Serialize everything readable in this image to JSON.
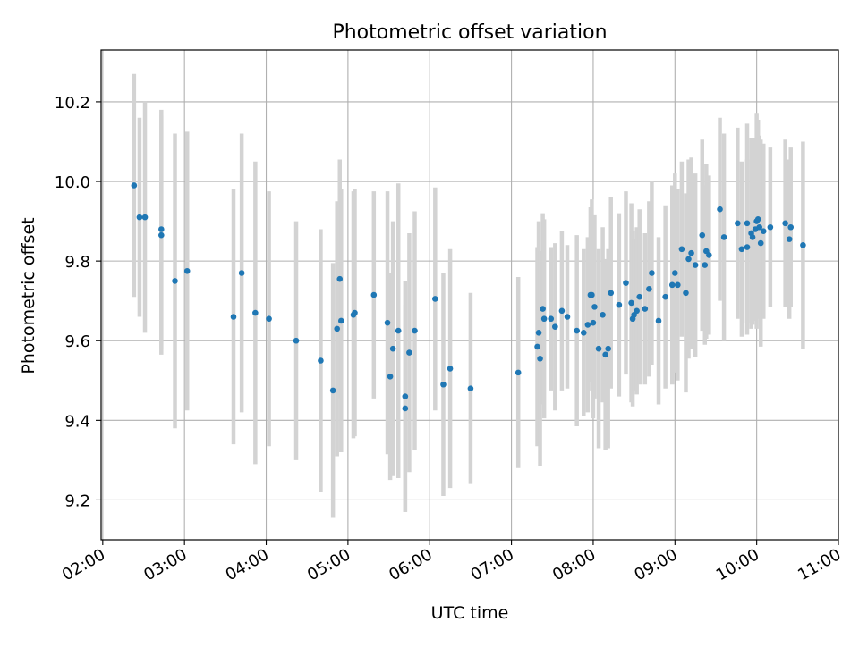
{
  "chart_data": {
    "type": "scatter",
    "title": "Photometric offset variation",
    "xlabel": "UTC time",
    "ylabel": "Photometric offset",
    "x_unit": "hours UTC",
    "xlim": [
      1.98,
      11.0
    ],
    "ylim": [
      9.1,
      10.33
    ],
    "xticks": [
      "02:00",
      "03:00",
      "04:00",
      "05:00",
      "06:00",
      "07:00",
      "08:00",
      "09:00",
      "10:00",
      "11:00"
    ],
    "yticks": [
      "9.2",
      "9.4",
      "9.6",
      "9.8",
      "10.0",
      "10.2"
    ],
    "grid": true,
    "marker_color": "#1f77b4",
    "errorbar_color": "#d3d3d3",
    "series": [
      {
        "x": [
          "02:23",
          "02:27",
          "02:31",
          "02:43",
          "02:43",
          "02:53",
          "03:02",
          "03:36",
          "03:42",
          "03:52",
          "04:02",
          "04:22",
          "04:40",
          "04:49",
          "04:52",
          "04:54",
          "04:55",
          "05:04",
          "05:05",
          "05:19",
          "05:29",
          "05:31",
          "05:33",
          "05:37",
          "05:42",
          "05:42",
          "05:45",
          "05:49",
          "06:04",
          "06:10",
          "06:15",
          "06:30",
          "07:05",
          "07:19",
          "07:20",
          "07:21",
          "07:23",
          "07:24",
          "07:29",
          "07:32",
          "07:37",
          "07:41",
          "07:48",
          "07:53",
          "07:56",
          "07:58",
          "07:59",
          "08:00",
          "08:01",
          "08:04",
          "08:07",
          "08:09",
          "08:11",
          "08:13",
          "08:19",
          "08:24",
          "08:28",
          "08:29",
          "08:30",
          "08:32",
          "08:34",
          "08:38",
          "08:41",
          "08:43",
          "08:48",
          "08:53",
          "08:58",
          "09:00",
          "09:02",
          "09:05",
          "09:08",
          "09:10",
          "09:12",
          "09:15",
          "09:20",
          "09:22",
          "09:23",
          "09:25",
          "09:33",
          "09:36",
          "09:46",
          "09:49",
          "09:53",
          "09:53",
          "09:56",
          "09:57",
          "09:59",
          "10:00",
          "10:01",
          "10:02",
          "10:03",
          "10:05",
          "10:10",
          "10:21",
          "10:24",
          "10:25",
          "10:34"
        ],
        "y": [
          9.99,
          9.91,
          9.91,
          9.88,
          9.865,
          9.75,
          9.775,
          9.66,
          9.77,
          9.67,
          9.655,
          9.6,
          9.55,
          9.475,
          9.63,
          9.755,
          9.65,
          9.665,
          9.67,
          9.715,
          9.645,
          9.51,
          9.58,
          9.625,
          9.46,
          9.43,
          9.57,
          9.625,
          9.705,
          9.49,
          9.53,
          9.48,
          9.52,
          9.585,
          9.62,
          9.555,
          9.68,
          9.655,
          9.655,
          9.635,
          9.675,
          9.66,
          9.625,
          9.62,
          9.64,
          9.715,
          9.715,
          9.645,
          9.685,
          9.58,
          9.665,
          9.565,
          9.58,
          9.72,
          9.69,
          9.745,
          9.695,
          9.655,
          9.665,
          9.675,
          9.71,
          9.68,
          9.73,
          9.77,
          9.65,
          9.71,
          9.74,
          9.77,
          9.74,
          9.83,
          9.72,
          9.805,
          9.82,
          9.79,
          9.865,
          9.79,
          9.825,
          9.815,
          9.93,
          9.86,
          9.895,
          9.83,
          9.835,
          9.895,
          9.87,
          9.86,
          9.88,
          9.9,
          9.905,
          9.885,
          9.845,
          9.875,
          9.885,
          9.895,
          9.855,
          9.885,
          9.84
        ],
        "yerr": [
          0.28,
          0.25,
          0.29,
          0.3,
          0.3,
          0.37,
          0.35,
          0.32,
          0.35,
          0.38,
          0.32,
          0.3,
          0.33,
          0.32,
          0.32,
          0.3,
          0.33,
          0.31,
          0.31,
          0.26,
          0.33,
          0.26,
          0.32,
          0.37,
          0.29,
          0.26,
          0.3,
          0.3,
          0.28,
          0.28,
          0.3,
          0.24,
          0.24,
          0.25,
          0.28,
          0.27,
          0.24,
          0.25,
          0.18,
          0.21,
          0.2,
          0.18,
          0.24,
          0.21,
          0.22,
          0.22,
          0.24,
          0.24,
          0.23,
          0.25,
          0.22,
          0.24,
          0.25,
          0.24,
          0.23,
          0.23,
          0.25,
          0.22,
          0.19,
          0.21,
          0.22,
          0.19,
          0.22,
          0.23,
          0.21,
          0.23,
          0.25,
          0.25,
          0.24,
          0.22,
          0.25,
          0.25,
          0.24,
          0.23,
          0.24,
          0.2,
          0.22,
          0.2,
          0.23,
          0.26,
          0.24,
          0.22,
          0.22,
          0.25,
          0.24,
          0.22,
          0.23,
          0.27,
          0.25,
          0.23,
          0.26,
          0.22,
          0.2,
          0.21,
          0.2,
          0.2,
          0.26
        ]
      }
    ]
  }
}
